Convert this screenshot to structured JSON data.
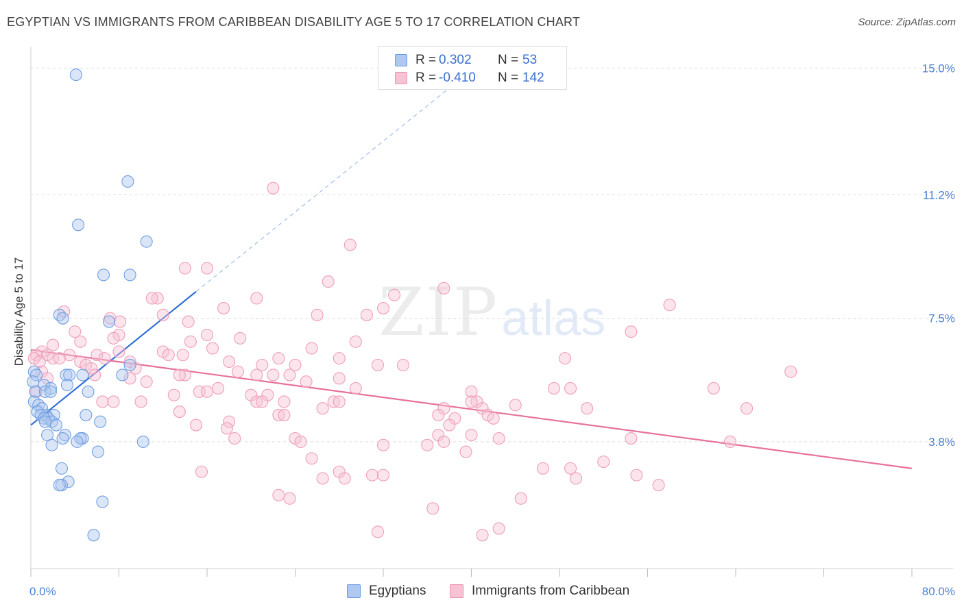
{
  "chart_data": {
    "type": "scatter",
    "title": "EGYPTIAN VS IMMIGRANTS FROM CARIBBEAN DISABILITY AGE 5 TO 17 CORRELATION CHART",
    "source": "Source: ZipAtlas.com",
    "xlabel": "",
    "ylabel": "Disability Age 5 to 17",
    "xlim": [
      0,
      80
    ],
    "ylim": [
      0,
      15.5
    ],
    "x_tick_labels": [
      "0.0%",
      "80.0%"
    ],
    "y_ticks": [
      3.8,
      7.5,
      11.2,
      15.0
    ],
    "y_tick_labels": [
      "3.8%",
      "7.5%",
      "11.2%",
      "15.0%"
    ],
    "grid": true,
    "watermark": "ZIPatlas",
    "legend_top": {
      "rows": [
        {
          "r_label": "R =",
          "r_value": "0.302",
          "n_label": "N =",
          "n_value": "53"
        },
        {
          "r_label": "R =",
          "r_value": "-0.410",
          "n_label": "N =",
          "n_value": "142"
        }
      ]
    },
    "series": [
      {
        "name": "Egyptians",
        "color": "#6b9be0",
        "fill": "#aec8f0",
        "trend": {
          "x0": 0.0,
          "y0": 4.3,
          "x1": 15.0,
          "y1": 8.3,
          "dashed_to_x": 38,
          "dashed_to_y": 14.4
        },
        "points": [
          [
            4.1,
            14.8
          ],
          [
            8.8,
            11.6
          ],
          [
            4.3,
            10.3
          ],
          [
            10.5,
            9.8
          ],
          [
            6.6,
            8.8
          ],
          [
            9.0,
            8.8
          ],
          [
            2.6,
            7.6
          ],
          [
            2.9,
            7.5
          ],
          [
            7.1,
            7.4
          ],
          [
            0.3,
            5.9
          ],
          [
            0.5,
            5.8
          ],
          [
            0.2,
            5.6
          ],
          [
            1.2,
            5.5
          ],
          [
            1.8,
            5.4
          ],
          [
            0.4,
            5.3
          ],
          [
            1.3,
            5.3
          ],
          [
            1.8,
            5.3
          ],
          [
            3.2,
            5.8
          ],
          [
            3.5,
            5.8
          ],
          [
            4.7,
            5.8
          ],
          [
            8.3,
            5.8
          ],
          [
            9.0,
            6.1
          ],
          [
            3.3,
            5.5
          ],
          [
            5.2,
            5.3
          ],
          [
            0.3,
            5.0
          ],
          [
            0.7,
            4.9
          ],
          [
            1.0,
            4.8
          ],
          [
            0.6,
            4.7
          ],
          [
            1.4,
            4.6
          ],
          [
            0.9,
            4.6
          ],
          [
            2.1,
            4.6
          ],
          [
            1.6,
            4.5
          ],
          [
            1.2,
            4.5
          ],
          [
            1.9,
            4.4
          ],
          [
            1.3,
            4.4
          ],
          [
            5.0,
            4.6
          ],
          [
            6.3,
            4.4
          ],
          [
            2.3,
            4.3
          ],
          [
            1.5,
            4.0
          ],
          [
            3.1,
            4.0
          ],
          [
            2.9,
            3.9
          ],
          [
            4.7,
            3.9
          ],
          [
            4.5,
            3.9
          ],
          [
            4.2,
            3.8
          ],
          [
            10.2,
            3.8
          ],
          [
            1.9,
            3.7
          ],
          [
            6.1,
            3.5
          ],
          [
            2.8,
            3.0
          ],
          [
            3.4,
            2.6
          ],
          [
            2.8,
            2.5
          ],
          [
            2.6,
            2.5
          ],
          [
            6.5,
            2.0
          ],
          [
            5.7,
            1.0
          ]
        ]
      },
      {
        "name": "Immigrants from Caribbean",
        "color": "#e8709b",
        "fill": "#f7c3d4",
        "trend": {
          "x0": 0.0,
          "y0": 6.55,
          "x1": 80.0,
          "y1": 3.0
        },
        "points": [
          [
            22.0,
            11.4
          ],
          [
            29.0,
            9.7
          ],
          [
            14.0,
            9.0
          ],
          [
            16.0,
            9.0
          ],
          [
            27.0,
            8.6
          ],
          [
            37.5,
            8.4
          ],
          [
            33.0,
            8.2
          ],
          [
            11.5,
            8.1
          ],
          [
            11.0,
            8.1
          ],
          [
            20.5,
            8.1
          ],
          [
            17.5,
            7.8
          ],
          [
            32.0,
            7.8
          ],
          [
            58.0,
            7.9
          ],
          [
            3.0,
            7.7
          ],
          [
            12.0,
            7.6
          ],
          [
            26.0,
            7.6
          ],
          [
            30.5,
            7.6
          ],
          [
            7.2,
            7.5
          ],
          [
            8.1,
            7.4
          ],
          [
            14.3,
            7.4
          ],
          [
            4.0,
            7.1
          ],
          [
            8.0,
            7.0
          ],
          [
            7.5,
            6.9
          ],
          [
            16.0,
            7.0
          ],
          [
            19.0,
            6.9
          ],
          [
            14.5,
            6.8
          ],
          [
            29.5,
            6.8
          ],
          [
            4.5,
            6.8
          ],
          [
            2.0,
            6.7
          ],
          [
            16.5,
            6.6
          ],
          [
            54.5,
            7.1
          ],
          [
            25.5,
            6.6
          ],
          [
            1.0,
            6.5
          ],
          [
            0.5,
            6.4
          ],
          [
            1.5,
            6.4
          ],
          [
            2.0,
            6.3
          ],
          [
            3.5,
            6.4
          ],
          [
            6.0,
            6.4
          ],
          [
            8.0,
            6.5
          ],
          [
            12.0,
            6.5
          ],
          [
            12.5,
            6.4
          ],
          [
            6.7,
            6.3
          ],
          [
            13.8,
            6.4
          ],
          [
            28.0,
            6.3
          ],
          [
            48.5,
            6.3
          ],
          [
            0.3,
            6.3
          ],
          [
            0.8,
            6.2
          ],
          [
            2.6,
            6.3
          ],
          [
            4.5,
            6.2
          ],
          [
            5.0,
            6.1
          ],
          [
            9.0,
            6.2
          ],
          [
            5.5,
            6.0
          ],
          [
            18.0,
            6.2
          ],
          [
            21.0,
            6.1
          ],
          [
            22.5,
            6.3
          ],
          [
            20.5,
            5.8
          ],
          [
            24.0,
            6.1
          ],
          [
            31.5,
            6.1
          ],
          [
            33.8,
            6.1
          ],
          [
            1.0,
            5.9
          ],
          [
            5.8,
            5.8
          ],
          [
            9.5,
            6.0
          ],
          [
            14.0,
            5.8
          ],
          [
            18.8,
            5.9
          ],
          [
            22.0,
            5.8
          ],
          [
            23.5,
            5.8
          ],
          [
            1.5,
            5.7
          ],
          [
            9.0,
            5.7
          ],
          [
            10.5,
            5.6
          ],
          [
            13.5,
            5.8
          ],
          [
            15.3,
            5.3
          ],
          [
            17.0,
            5.4
          ],
          [
            25.0,
            5.6
          ],
          [
            28.0,
            5.7
          ],
          [
            29.5,
            5.4
          ],
          [
            47.5,
            5.4
          ],
          [
            49.0,
            5.4
          ],
          [
            69.0,
            5.9
          ],
          [
            62.0,
            5.4
          ],
          [
            40.0,
            5.3
          ],
          [
            0.5,
            5.3
          ],
          [
            13.0,
            5.2
          ],
          [
            20.0,
            5.2
          ],
          [
            21.5,
            5.2
          ],
          [
            16.0,
            5.3
          ],
          [
            6.5,
            5.0
          ],
          [
            10.0,
            5.0
          ],
          [
            7.5,
            5.0
          ],
          [
            20.5,
            5.0
          ],
          [
            21.0,
            5.0
          ],
          [
            23.0,
            5.0
          ],
          [
            27.5,
            5.0
          ],
          [
            28.0,
            5.0
          ],
          [
            40.5,
            5.0
          ],
          [
            40.0,
            5.0
          ],
          [
            44.0,
            4.9
          ],
          [
            13.5,
            4.7
          ],
          [
            26.5,
            4.8
          ],
          [
            37.5,
            4.8
          ],
          [
            50.5,
            4.8
          ],
          [
            41.0,
            4.8
          ],
          [
            65.0,
            4.8
          ],
          [
            22.5,
            4.6
          ],
          [
            23.0,
            4.6
          ],
          [
            37.0,
            4.6
          ],
          [
            41.5,
            4.6
          ],
          [
            38.5,
            4.5
          ],
          [
            42.0,
            4.5
          ],
          [
            18.0,
            4.4
          ],
          [
            15.0,
            4.3
          ],
          [
            17.8,
            4.2
          ],
          [
            38.0,
            4.3
          ],
          [
            37.0,
            4.0
          ],
          [
            40.0,
            4.0
          ],
          [
            18.5,
            3.9
          ],
          [
            24.0,
            3.9
          ],
          [
            42.5,
            3.9
          ],
          [
            54.5,
            3.9
          ],
          [
            24.5,
            3.8
          ],
          [
            37.5,
            3.8
          ],
          [
            32.0,
            3.7
          ],
          [
            36.0,
            3.7
          ],
          [
            63.5,
            3.8
          ],
          [
            39.5,
            3.5
          ],
          [
            15.5,
            2.9
          ],
          [
            25.5,
            3.3
          ],
          [
            31.0,
            2.8
          ],
          [
            32.0,
            2.8
          ],
          [
            46.5,
            3.0
          ],
          [
            52.0,
            3.2
          ],
          [
            49.0,
            3.0
          ],
          [
            49.5,
            2.7
          ],
          [
            55.0,
            2.8
          ],
          [
            57.0,
            2.5
          ],
          [
            28.0,
            2.9
          ],
          [
            28.5,
            2.7
          ],
          [
            26.5,
            2.7
          ],
          [
            23.5,
            2.1
          ],
          [
            22.5,
            2.2
          ],
          [
            36.5,
            1.8
          ],
          [
            44.5,
            2.1
          ],
          [
            31.5,
            1.1
          ],
          [
            42.5,
            1.2
          ],
          [
            41.0,
            1.0
          ]
        ]
      }
    ],
    "legend": "bottom-center"
  }
}
